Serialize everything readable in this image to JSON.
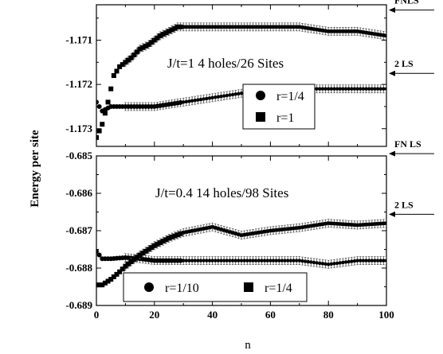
{
  "chart_data": [
    {
      "type": "scatter",
      "title": "",
      "annotation": "J/t=1 4 holes/26 Sites",
      "xlabel": "n",
      "ylabel": "Energy per site",
      "xlim": [
        0,
        100
      ],
      "ylim": [
        -1.1734,
        -1.1702
      ],
      "y_ticks": [
        "-1.171",
        "-1.172",
        "-1.173"
      ],
      "y_tick_values": [
        -1.171,
        -1.172,
        -1.173
      ],
      "x_ticks": [],
      "error_bars": true,
      "legend_position": "center-right",
      "reference_lines": [
        {
          "label": "FNLS",
          "y": -1.17032
        },
        {
          "label": "2 LS",
          "y": -1.17175
        }
      ],
      "series": [
        {
          "name": "r=1/4",
          "marker": "circle",
          "x": [
            0,
            2,
            5,
            10,
            20,
            30,
            40,
            50,
            60,
            70,
            80,
            90,
            100
          ],
          "y": [
            -1.1724,
            -1.1726,
            -1.1725,
            -1.1725,
            -1.1725,
            -1.1724,
            -1.1723,
            -1.1722,
            -1.1722,
            -1.1721,
            -1.1721,
            -1.1721,
            -1.1721
          ]
        },
        {
          "name": "r=1",
          "marker": "square",
          "x": [
            0,
            2,
            4,
            6,
            8,
            10,
            12,
            15,
            18,
            20,
            22,
            25,
            28,
            30,
            40,
            50,
            60,
            70,
            80,
            90,
            100
          ],
          "y": [
            -1.1732,
            -1.1729,
            -1.1724,
            -1.1718,
            -1.1716,
            -1.1715,
            -1.1714,
            -1.1712,
            -1.1711,
            -1.171,
            -1.1709,
            -1.1708,
            -1.1707,
            -1.1707,
            -1.1707,
            -1.1707,
            -1.1707,
            -1.1707,
            -1.1708,
            -1.1708,
            -1.1709
          ]
        }
      ]
    },
    {
      "type": "scatter",
      "title": "",
      "annotation": "J/t=0.4 14 holes/98 Sites",
      "xlabel": "n",
      "ylabel": "Energy per site",
      "xlim": [
        0,
        100
      ],
      "ylim": [
        -0.689,
        -0.685
      ],
      "y_ticks": [
        "-0.685",
        "-0.686",
        "-0.687",
        "-0.688",
        "-0.689"
      ],
      "y_tick_values": [
        -0.685,
        -0.686,
        -0.687,
        -0.688,
        -0.689
      ],
      "x_ticks": [
        "0",
        "20",
        "40",
        "60",
        "80",
        "100"
      ],
      "x_tick_values": [
        0,
        20,
        40,
        60,
        80,
        100
      ],
      "error_bars": true,
      "legend_position": "bottom",
      "reference_lines": [
        {
          "label": "FN LS",
          "y": -0.68494
        },
        {
          "label": "2 LS",
          "y": -0.68656
        }
      ],
      "series": [
        {
          "name": "r=1/10",
          "marker": "circle",
          "x": [
            0,
            2,
            5,
            10,
            15,
            20,
            30,
            40,
            50,
            60,
            70,
            80,
            90,
            100
          ],
          "y": [
            -0.68755,
            -0.68775,
            -0.68775,
            -0.68772,
            -0.68775,
            -0.6878,
            -0.6878,
            -0.6878,
            -0.6878,
            -0.6878,
            -0.6878,
            -0.6879,
            -0.6878,
            -0.6878
          ]
        },
        {
          "name": "r=1/4",
          "marker": "square",
          "x": [
            0,
            2,
            5,
            8,
            10,
            15,
            20,
            25,
            30,
            40,
            50,
            60,
            70,
            80,
            90,
            100
          ],
          "y": [
            -0.68845,
            -0.68845,
            -0.6883,
            -0.6881,
            -0.68795,
            -0.68765,
            -0.6874,
            -0.6872,
            -0.68705,
            -0.6869,
            -0.68712,
            -0.687,
            -0.68692,
            -0.6868,
            -0.68685,
            -0.6868
          ]
        }
      ]
    }
  ]
}
